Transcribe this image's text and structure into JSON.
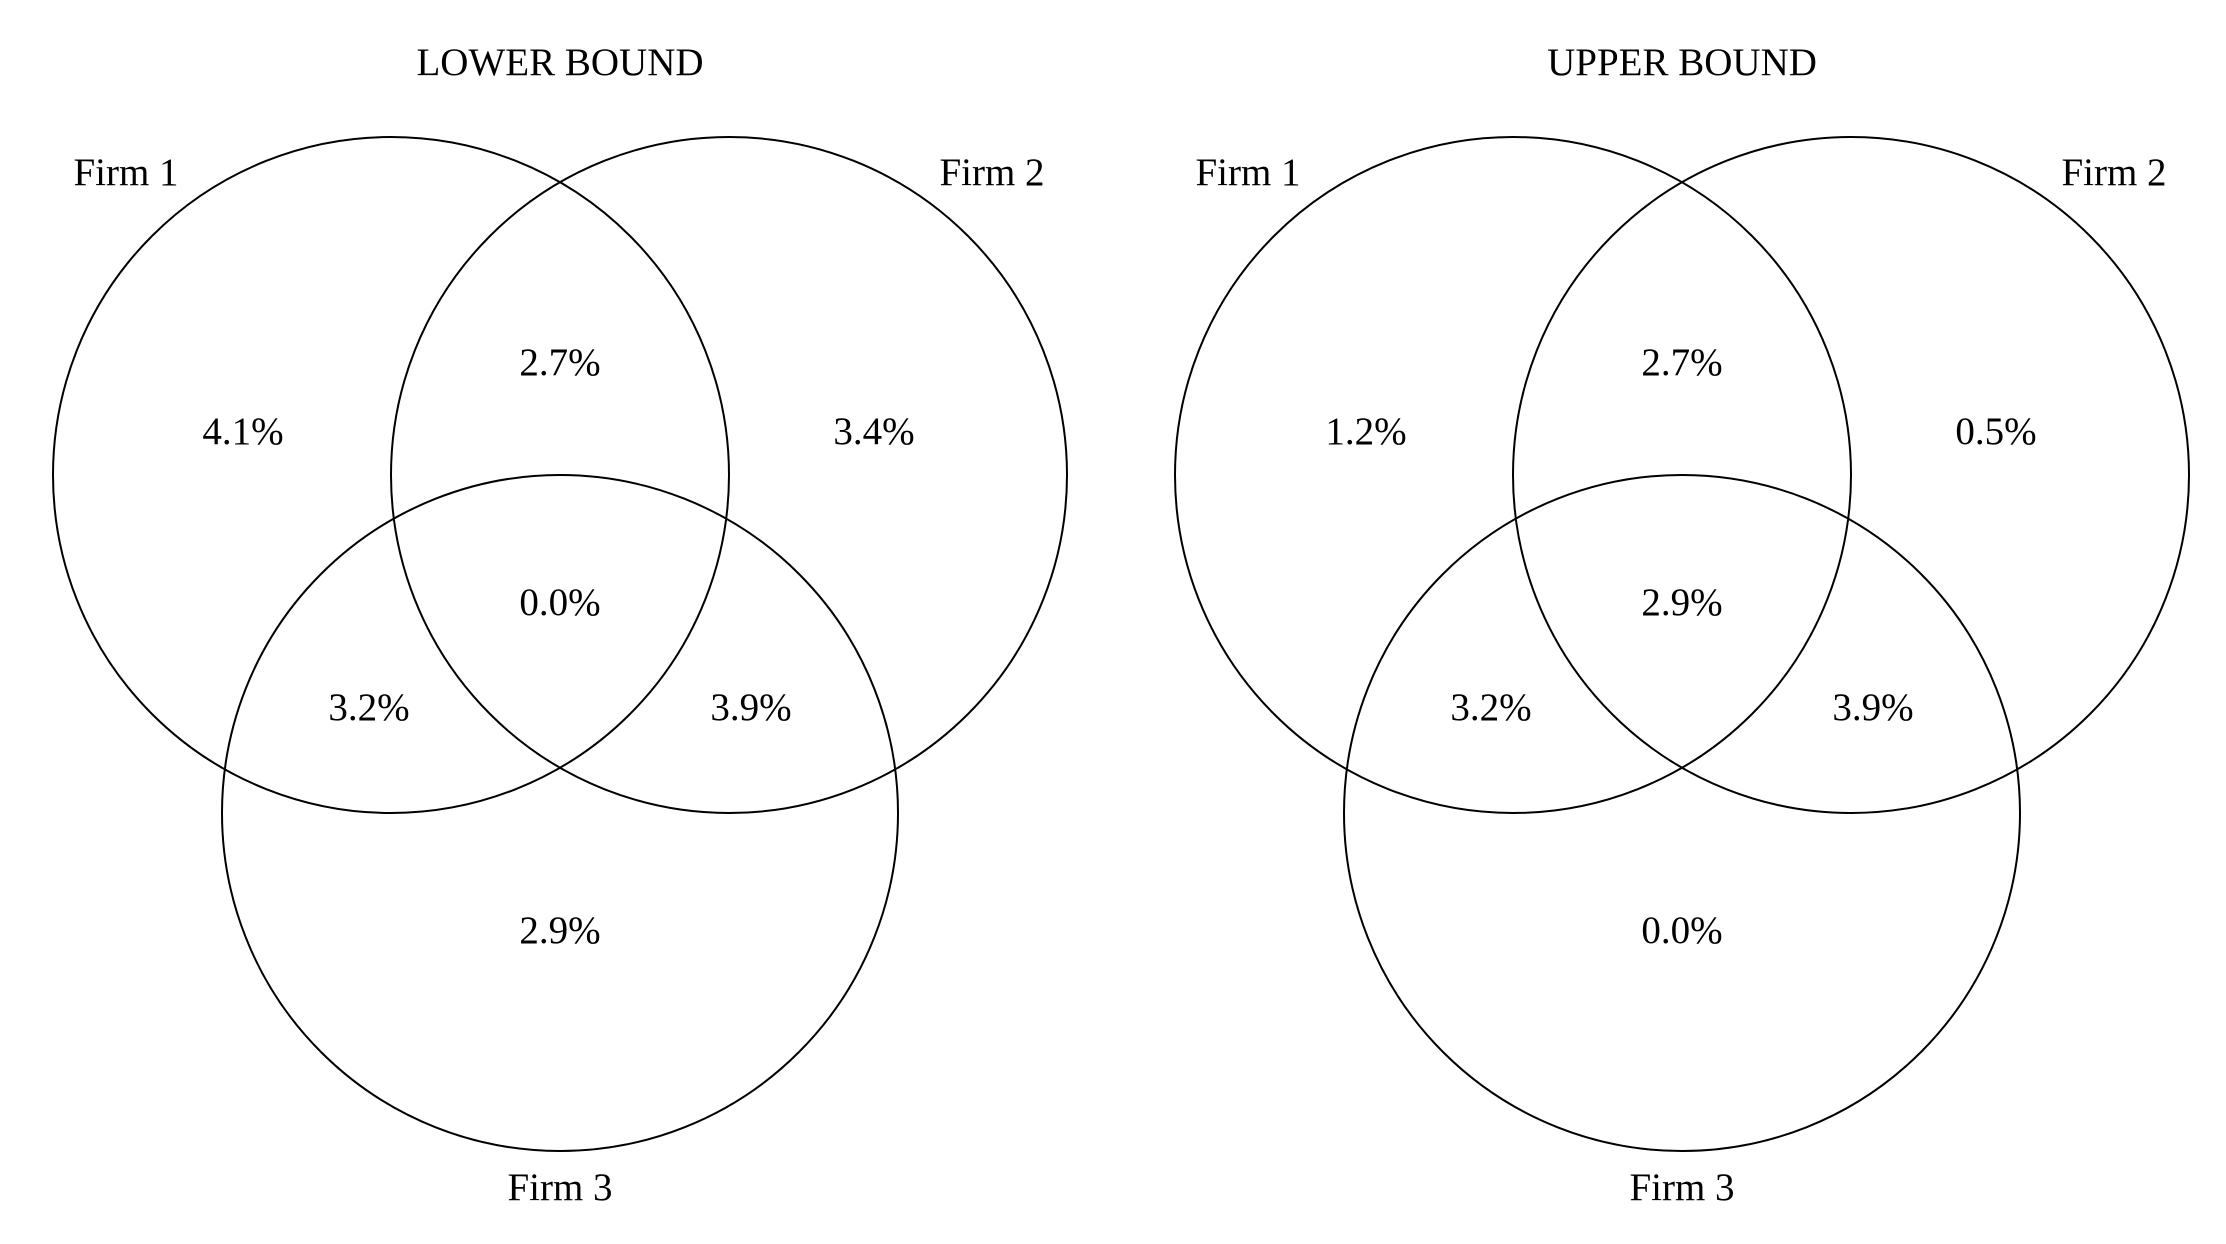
{
  "diagrams": [
    {
      "title": "LOWER BOUND",
      "sets": [
        "Firm 1",
        "Firm 2",
        "Firm 3"
      ],
      "regions": {
        "firm1_only": "4.1%",
        "firm1_firm2": "2.7%",
        "firm2_only": "3.4%",
        "all_three": "0.0%",
        "firm1_firm3": "3.2%",
        "firm2_firm3": "3.9%",
        "firm3_only": "2.9%"
      }
    },
    {
      "title": "UPPER BOUND",
      "sets": [
        "Firm 1",
        "Firm 2",
        "Firm 3"
      ],
      "regions": {
        "firm1_only": "1.2%",
        "firm1_firm2": "2.7%",
        "firm2_only": "0.5%",
        "all_three": "2.9%",
        "firm1_firm3": "3.2%",
        "firm2_firm3": "3.9%",
        "firm3_only": "0.0%"
      }
    }
  ]
}
